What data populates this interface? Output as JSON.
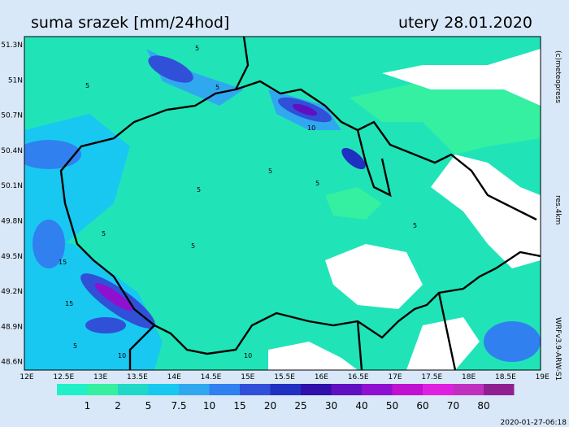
{
  "header": {
    "title": "suma srazek [mm/24hod]",
    "date": "utery 28.01.2020"
  },
  "side": {
    "copyright": "(c)meteopress",
    "resolution": "res.4km",
    "model": "WRFv3.9-ARW-S1"
  },
  "lat_labels": [
    "51.3N",
    "51N",
    "50.7N",
    "50.4N",
    "50.1N",
    "49.8N",
    "49.5N",
    "49.2N",
    "48.9N",
    "48.6N"
  ],
  "lon_labels": [
    "12E",
    "12.5E",
    "13E",
    "13.5E",
    "14E",
    "14.5E",
    "15E",
    "15.5E",
    "16E",
    "16.5E",
    "17E",
    "17.5E",
    "18E",
    "18.5E",
    "19E"
  ],
  "legend": {
    "labels": [
      1,
      2,
      5,
      7.5,
      10,
      15,
      20,
      25,
      30,
      40,
      50,
      60,
      70,
      80
    ]
  },
  "contour_labels": [
    5,
    5,
    10,
    5,
    5,
    5,
    5,
    5,
    15,
    15,
    5,
    10,
    5,
    5,
    10
  ],
  "footer": {
    "timestamp": "2020-01-27-06:18"
  }
}
